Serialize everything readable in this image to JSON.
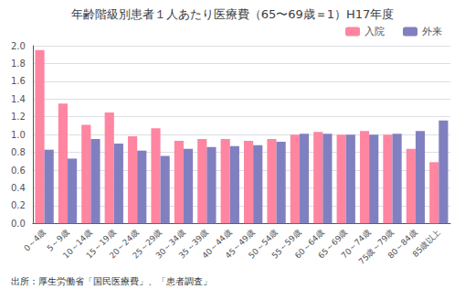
{
  "chart_data": {
    "type": "bar",
    "title": "年齢階級別患者１人あたり医療費（65〜69歳＝1）H17年度",
    "categories": [
      "0～4歳",
      "5～9歳",
      "10～14歳",
      "15～19歳",
      "20～24歳",
      "25～29歳",
      "30～34歳",
      "35～39歳",
      "40～44歳",
      "45～49歳",
      "50～54歳",
      "55～59歳",
      "60～64歳",
      "65～69歳",
      "70～74歳",
      "75歳～79歳",
      "80～84歳",
      "85歳以上"
    ],
    "series": [
      {
        "name": "入院",
        "color": "#FF85A1",
        "values": [
          1.95,
          1.35,
          1.11,
          1.25,
          0.98,
          1.07,
          0.93,
          0.95,
          0.95,
          0.93,
          0.95,
          1.0,
          1.03,
          1.0,
          1.04,
          1.0,
          0.84,
          0.69
        ]
      },
      {
        "name": "外来",
        "color": "#8080C0",
        "values": [
          0.83,
          0.73,
          0.95,
          0.9,
          0.82,
          0.76,
          0.84,
          0.86,
          0.87,
          0.88,
          0.92,
          1.01,
          1.01,
          1.0,
          1.0,
          1.01,
          1.04,
          1.16
        ]
      }
    ],
    "ylim": [
      0.0,
      2.0
    ],
    "yticks": [
      {
        "value": 0.0,
        "label": "0.0"
      },
      0.2,
      0.4,
      0.6,
      0.8,
      {
        "value": 1.0,
        "label": "1.0"
      },
      1.2,
      1.4,
      1.6,
      1.8,
      {
        "value": 2.0,
        "label": "2.0"
      }
    ],
    "grid": true,
    "legend": "upper right",
    "annotations": [
      "出所：厚生労働省「国民医療費」、「患者調査」"
    ]
  }
}
